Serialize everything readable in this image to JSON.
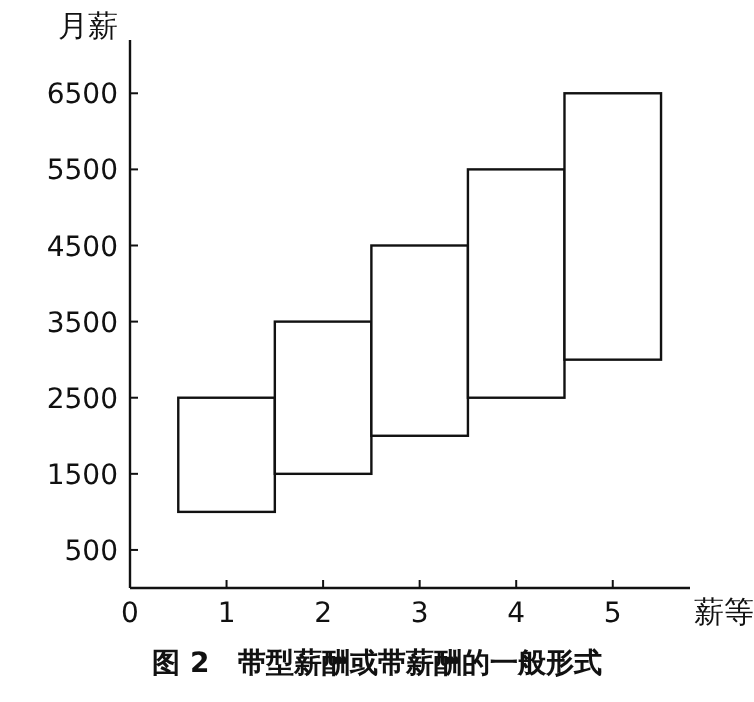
{
  "chart_data": {
    "type": "bar",
    "title": "图 2　带型薪酬或带薪酬的一般形式",
    "xlabel": "薪等",
    "ylabel": "月薪",
    "x": [
      1,
      2,
      3,
      4,
      5
    ],
    "values": [
      1500,
      2000,
      2500,
      3000,
      3500
    ],
    "base": [
      1000,
      1500,
      2000,
      2500,
      3000
    ],
    "color": "#ffffff",
    "xlim": [
      0,
      5.8
    ],
    "ylim": [
      0,
      7200
    ],
    "xticks": [
      0,
      1,
      2,
      3,
      4,
      5
    ],
    "yticks": [
      500,
      1500,
      2500,
      3500,
      4500,
      5500,
      6500
    ]
  }
}
